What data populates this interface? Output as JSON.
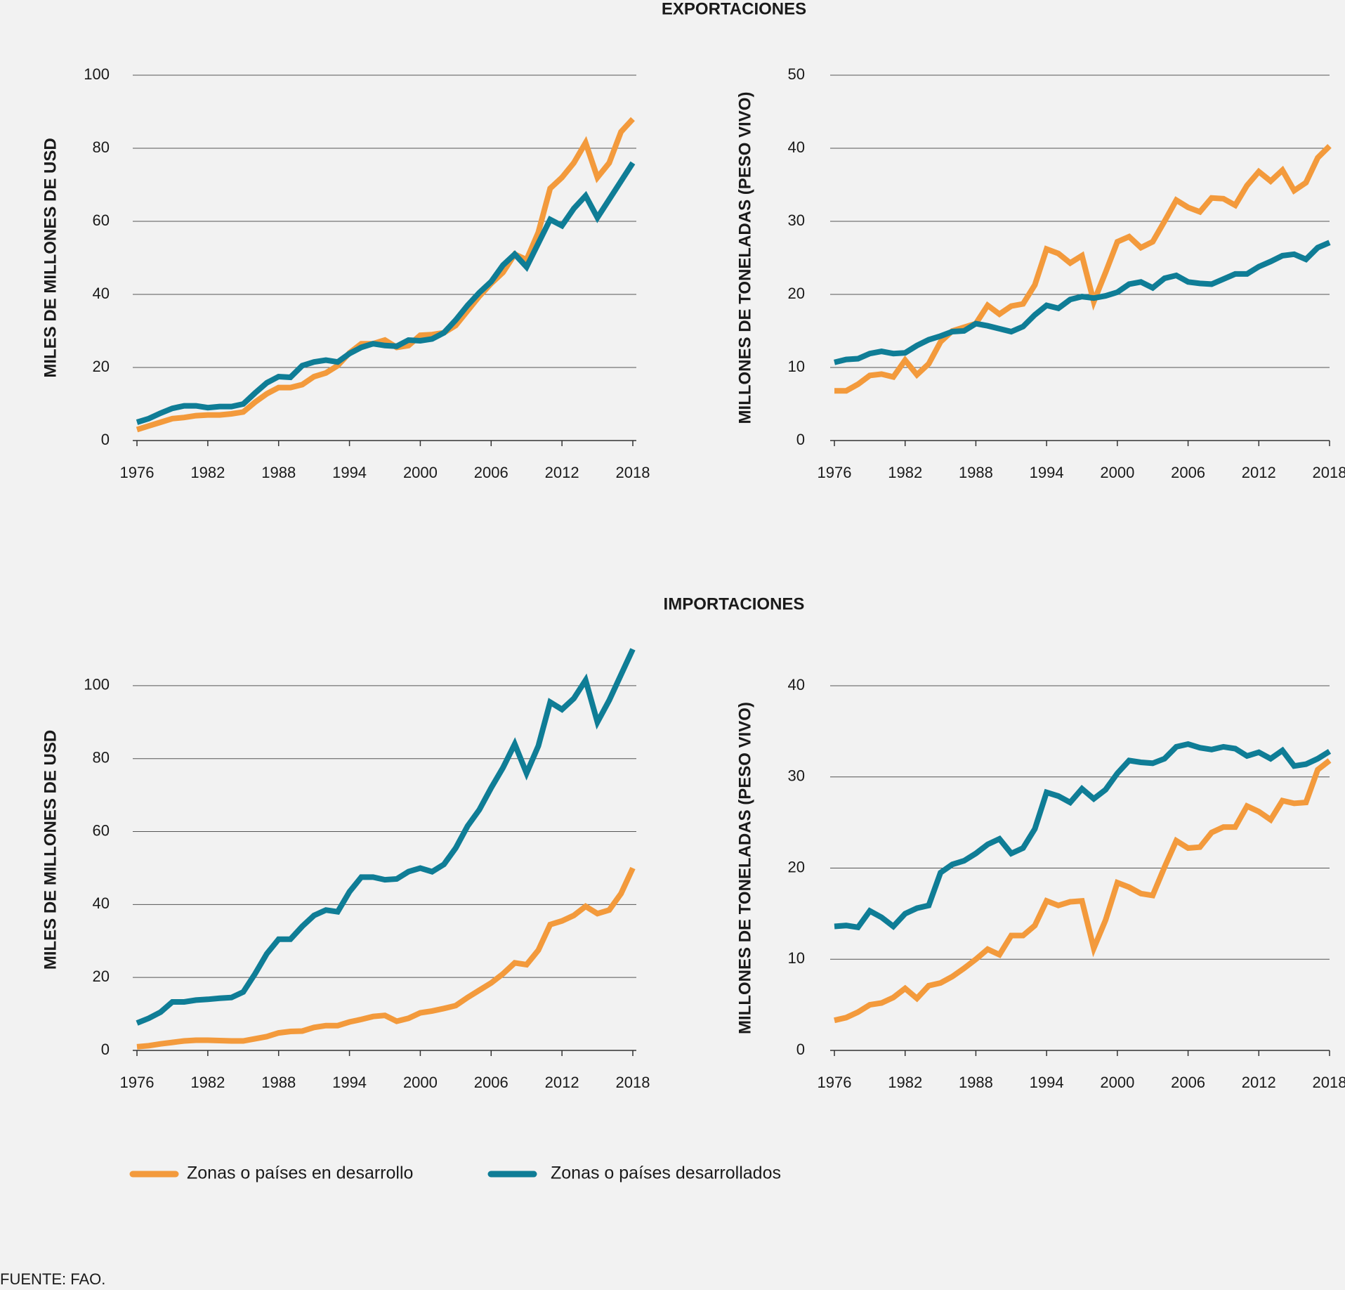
{
  "headings": [
    "EXPORTACIONES",
    "IMPORTACIONES"
  ],
  "source": "FUENTE: FAO.",
  "chart_data": [
    {
      "type": "line",
      "y_label": "MILES DE MILLONES DE USD",
      "grid": true,
      "xlim": [
        1976,
        2018
      ],
      "xticks": [
        1976,
        1982,
        1988,
        1994,
        2000,
        2006,
        2012,
        2018
      ],
      "ylim": [
        0,
        100
      ],
      "yticks": [
        0,
        20,
        40,
        60,
        80,
        100
      ],
      "x": [
        1976,
        1977,
        1978,
        1979,
        1980,
        1981,
        1982,
        1983,
        1984,
        1985,
        1986,
        1987,
        1988,
        1989,
        1990,
        1991,
        1992,
        1993,
        1994,
        1995,
        1996,
        1997,
        1998,
        1999,
        2000,
        2001,
        2002,
        2003,
        2004,
        2005,
        2006,
        2007,
        2008,
        2009,
        2010,
        2011,
        2012,
        2013,
        2014,
        2015,
        2016,
        2017,
        2018
      ],
      "series": [
        {
          "name": "Zonas o países en desarrollo",
          "color": "#f39a3c",
          "values": [
            3,
            4,
            5,
            6,
            6.3,
            6.8,
            7,
            7,
            7.3,
            7.8,
            10.5,
            12.8,
            14.5,
            14.5,
            15.3,
            17.5,
            18.5,
            20.5,
            24,
            26.5,
            26.5,
            27.5,
            25.5,
            26,
            28.8,
            29,
            29.5,
            31.5,
            35.5,
            39.5,
            43,
            46,
            51,
            49.5,
            57,
            69,
            72,
            76,
            81.5,
            72,
            76,
            84.5,
            88
          ]
        },
        {
          "name": "Zonas o países desarrollados",
          "color": "#0f7d96",
          "values": [
            5,
            6,
            7.5,
            8.8,
            9.5,
            9.5,
            9,
            9.3,
            9.3,
            10,
            13,
            15.8,
            17.5,
            17.3,
            20.5,
            21.5,
            22,
            21.5,
            23.8,
            25.5,
            26.5,
            26,
            25.8,
            27.5,
            27.3,
            27.8,
            29.5,
            33,
            37,
            40.5,
            43.5,
            48,
            51,
            47.5,
            54,
            60.5,
            58.8,
            63.5,
            67,
            61,
            66,
            71,
            76
          ]
        }
      ]
    },
    {
      "type": "line",
      "y_label": "MILLONES DE TONELADAS (PESO VIVO)",
      "grid": true,
      "xlim": [
        1976,
        2018
      ],
      "xticks": [
        1976,
        1982,
        1988,
        1994,
        2000,
        2006,
        2012,
        2018
      ],
      "ylim": [
        0,
        50
      ],
      "yticks": [
        0,
        10,
        20,
        30,
        40,
        50
      ],
      "x": [
        1976,
        1977,
        1978,
        1979,
        1980,
        1981,
        1982,
        1983,
        1984,
        1985,
        1986,
        1987,
        1988,
        1989,
        1990,
        1991,
        1992,
        1993,
        1994,
        1995,
        1996,
        1997,
        1998,
        1999,
        2000,
        2001,
        2002,
        2003,
        2004,
        2005,
        2006,
        2007,
        2008,
        2009,
        2010,
        2011,
        2012,
        2013,
        2014,
        2015,
        2016,
        2017,
        2018
      ],
      "series": [
        {
          "name": "Zonas o países en desarrollo",
          "color": "#f39a3c",
          "values": [
            6.8,
            6.8,
            7.7,
            8.9,
            9.1,
            8.7,
            11,
            9,
            10.5,
            13.5,
            15,
            15.5,
            16,
            18.5,
            17.3,
            18.4,
            18.7,
            21.3,
            26.2,
            25.6,
            24.3,
            25.3,
            19,
            23,
            27.2,
            27.9,
            26.4,
            27.2,
            30,
            32.9,
            31.9,
            31.3,
            33.2,
            33.1,
            32.2,
            34.9,
            36.8,
            35.5,
            37,
            34.2,
            35.3,
            38.7,
            40.3
          ]
        },
        {
          "name": "Zonas o países desarrollados",
          "color": "#0f7d96",
          "values": [
            10.7,
            11.1,
            11.2,
            11.9,
            12.2,
            11.9,
            12,
            13,
            13.8,
            14.3,
            14.9,
            15,
            16,
            15.7,
            15.3,
            14.9,
            15.6,
            17.2,
            18.5,
            18.1,
            19.3,
            19.7,
            19.5,
            19.8,
            20.3,
            21.4,
            21.7,
            20.9,
            22.2,
            22.6,
            21.7,
            21.5,
            21.4,
            22.1,
            22.8,
            22.8,
            23.8,
            24.5,
            25.3,
            25.5,
            24.8,
            26.4,
            27.1
          ]
        }
      ]
    },
    {
      "type": "line",
      "y_label": "MILES DE MILLONES DE USD",
      "grid": true,
      "xlim": [
        1976,
        2018
      ],
      "xticks": [
        1976,
        1982,
        1988,
        1994,
        2000,
        2006,
        2012,
        2018
      ],
      "ylim": [
        0,
        110
      ],
      "yticks": [
        0,
        20,
        40,
        60,
        80,
        100
      ],
      "x": [
        1976,
        1977,
        1978,
        1979,
        1980,
        1981,
        1982,
        1983,
        1984,
        1985,
        1986,
        1987,
        1988,
        1989,
        1990,
        1991,
        1992,
        1993,
        1994,
        1995,
        1996,
        1997,
        1998,
        1999,
        2000,
        2001,
        2002,
        2003,
        2004,
        2005,
        2006,
        2007,
        2008,
        2009,
        2010,
        2011,
        2012,
        2013,
        2014,
        2015,
        2016,
        2017,
        2018
      ],
      "series": [
        {
          "name": "Zonas o países en desarrollo",
          "color": "#f39a3c",
          "values": [
            1,
            1.3,
            1.8,
            2.2,
            2.6,
            2.8,
            2.8,
            2.7,
            2.6,
            2.6,
            3.2,
            3.8,
            4.8,
            5.2,
            5.3,
            6.3,
            6.8,
            6.8,
            7.8,
            8.5,
            9.3,
            9.6,
            8,
            8.8,
            10.3,
            10.8,
            11.5,
            12.3,
            14.5,
            16.5,
            18.5,
            21,
            24,
            23.5,
            27.5,
            34.5,
            35.5,
            37,
            39.5,
            37.5,
            38.5,
            43,
            50
          ]
        },
        {
          "name": "Zonas o países desarrollados",
          "color": "#0f7d96",
          "values": [
            7.5,
            8.8,
            10.5,
            13.3,
            13.3,
            13.8,
            14,
            14.3,
            14.5,
            16,
            21,
            26.5,
            30.5,
            30.5,
            34,
            37,
            38.5,
            38,
            43.5,
            47.5,
            47.5,
            46.8,
            47,
            49,
            50,
            49,
            51,
            55.5,
            61.5,
            66,
            72,
            77.5,
            84,
            76,
            83.5,
            95.5,
            93.5,
            96.5,
            101.5,
            90,
            96,
            103,
            110
          ]
        }
      ]
    },
    {
      "type": "line",
      "y_label": "MILLONES DE TONELADAS (PESO VIVO)",
      "grid": true,
      "xlim": [
        1976,
        2018
      ],
      "xticks": [
        1976,
        1982,
        1988,
        1994,
        2000,
        2006,
        2012,
        2018
      ],
      "ylim": [
        0,
        40
      ],
      "yticks": [
        0,
        10,
        20,
        30,
        40
      ],
      "x": [
        1976,
        1977,
        1978,
        1979,
        1980,
        1981,
        1982,
        1983,
        1984,
        1985,
        1986,
        1987,
        1988,
        1989,
        1990,
        1991,
        1992,
        1993,
        1994,
        1995,
        1996,
        1997,
        1998,
        1999,
        2000,
        2001,
        2002,
        2003,
        2004,
        2005,
        2006,
        2007,
        2008,
        2009,
        2010,
        2011,
        2012,
        2013,
        2014,
        2015,
        2016,
        2017,
        2018
      ],
      "series": [
        {
          "name": "Zonas o países en desarrollo",
          "color": "#f39a3c",
          "values": [
            3.3,
            3.6,
            4.2,
            5,
            5.2,
            5.8,
            6.8,
            5.7,
            7.1,
            7.4,
            8.1,
            9,
            10,
            11.1,
            10.5,
            12.6,
            12.6,
            13.7,
            16.4,
            15.9,
            16.3,
            16.4,
            11.2,
            14.3,
            18.4,
            17.9,
            17.2,
            17,
            20.1,
            23,
            22.2,
            22.3,
            23.9,
            24.5,
            24.5,
            26.8,
            26.2,
            25.3,
            27.4,
            27.1,
            27.2,
            30.8,
            31.8
          ]
        },
        {
          "name": "Zonas o países desarrollados",
          "color": "#0f7d96",
          "values": [
            13.6,
            13.7,
            13.5,
            15.3,
            14.6,
            13.6,
            15,
            15.6,
            15.9,
            19.5,
            20.4,
            20.8,
            21.6,
            22.6,
            23.2,
            21.6,
            22.2,
            24.3,
            28.3,
            27.9,
            27.2,
            28.7,
            27.6,
            28.6,
            30.4,
            31.8,
            31.6,
            31.5,
            32,
            33.3,
            33.6,
            33.2,
            33,
            33.3,
            33.1,
            32.3,
            32.7,
            32,
            32.9,
            31.2,
            31.4,
            32,
            32.8
          ]
        }
      ]
    }
  ]
}
